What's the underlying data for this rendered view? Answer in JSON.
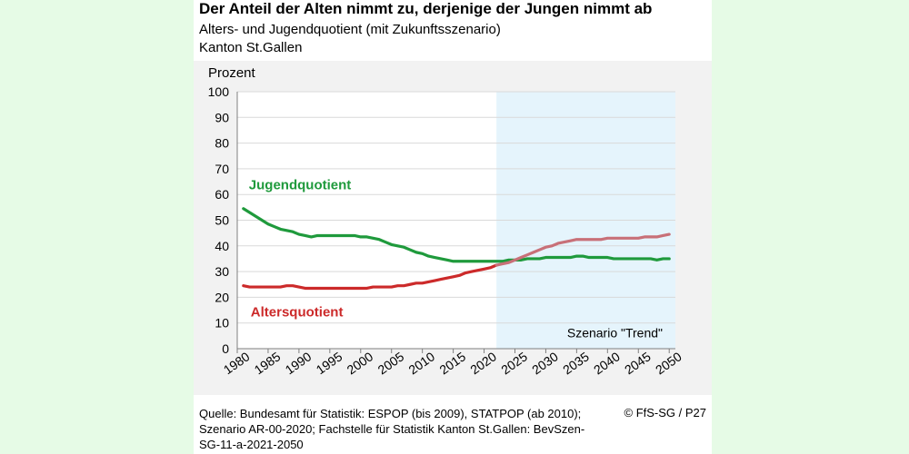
{
  "header": {
    "title": "Der Anteil der Alten nimmt zu, derjenige der Jungen nimmt ab",
    "subtitle": "Alters- und Jugendquotient (mit Zukunftsszenario)",
    "region": "Kanton St.Gallen"
  },
  "footer": {
    "source": "Quelle: Bundesamt für Statistik: ESPOP (bis 2009), STATPOP (ab 2010); Szenario AR-00-2020; Fachstelle für Statistik Kanton St.Gallen: BevSzen-SG-11-a-2021-2050",
    "copyright": "© FfS-SG / P27"
  },
  "chart_data": {
    "type": "line",
    "ylabel": "Prozent",
    "xlabel": "",
    "xlim": [
      1980,
      2051
    ],
    "ylim": [
      0,
      100
    ],
    "x_ticks": [
      1980,
      1985,
      1990,
      1995,
      2000,
      2005,
      2010,
      2015,
      2020,
      2025,
      2030,
      2035,
      2040,
      2045,
      2050
    ],
    "y_ticks": [
      0,
      10,
      20,
      30,
      40,
      50,
      60,
      70,
      80,
      90,
      100
    ],
    "grid": true,
    "scenario": {
      "label": "Szenario \"Trend\"",
      "from": 2022,
      "to": 2051,
      "color": "#e5f4fc"
    },
    "series": [
      {
        "name": "Jugendquotient",
        "color": "#1f9a3c",
        "x": [
          1981,
          1982,
          1983,
          1984,
          1985,
          1986,
          1987,
          1988,
          1989,
          1990,
          1991,
          1992,
          1993,
          1994,
          1995,
          1996,
          1997,
          1998,
          1999,
          2000,
          2001,
          2002,
          2003,
          2004,
          2005,
          2006,
          2007,
          2008,
          2009,
          2010,
          2011,
          2012,
          2013,
          2014,
          2015,
          2016,
          2017,
          2018,
          2019,
          2020,
          2021,
          2022,
          2023,
          2024,
          2025,
          2026,
          2027,
          2028,
          2029,
          2030,
          2031,
          2032,
          2033,
          2034,
          2035,
          2036,
          2037,
          2038,
          2039,
          2040,
          2041,
          2042,
          2043,
          2044,
          2045,
          2046,
          2047,
          2048,
          2049,
          2050
        ],
        "values": [
          54.5,
          53,
          51.5,
          50,
          48.5,
          47.5,
          46.5,
          46,
          45.5,
          44.5,
          44,
          43.5,
          44,
          44,
          44,
          44,
          44,
          44,
          44,
          43.5,
          43.5,
          43,
          42.5,
          41.5,
          40.5,
          40,
          39.5,
          38.5,
          37.5,
          37,
          36,
          35.5,
          35,
          34.5,
          34,
          34,
          34,
          34,
          34,
          34,
          34,
          34,
          34,
          34.5,
          34.5,
          34.5,
          35,
          35,
          35,
          35.5,
          35.5,
          35.5,
          35.5,
          35.5,
          36,
          36,
          35.5,
          35.5,
          35.5,
          35.5,
          35,
          35,
          35,
          35,
          35,
          35,
          35,
          34.5,
          35,
          35
        ]
      },
      {
        "name": "Altersquotient",
        "color": "#cc2a2a",
        "color_scenario": "#c87078",
        "x": [
          1981,
          1982,
          1983,
          1984,
          1985,
          1986,
          1987,
          1988,
          1989,
          1990,
          1991,
          1992,
          1993,
          1994,
          1995,
          1996,
          1997,
          1998,
          1999,
          2000,
          2001,
          2002,
          2003,
          2004,
          2005,
          2006,
          2007,
          2008,
          2009,
          2010,
          2011,
          2012,
          2013,
          2014,
          2015,
          2016,
          2017,
          2018,
          2019,
          2020,
          2021,
          2022,
          2023,
          2024,
          2025,
          2026,
          2027,
          2028,
          2029,
          2030,
          2031,
          2032,
          2033,
          2034,
          2035,
          2036,
          2037,
          2038,
          2039,
          2040,
          2041,
          2042,
          2043,
          2044,
          2045,
          2046,
          2047,
          2048,
          2049,
          2050
        ],
        "values": [
          24.5,
          24,
          24,
          24,
          24,
          24,
          24,
          24.5,
          24.5,
          24,
          23.5,
          23.5,
          23.5,
          23.5,
          23.5,
          23.5,
          23.5,
          23.5,
          23.5,
          23.5,
          23.5,
          24,
          24,
          24,
          24,
          24.5,
          24.5,
          25,
          25.5,
          25.5,
          26,
          26.5,
          27,
          27.5,
          28,
          28.5,
          29.5,
          30,
          30.5,
          31,
          31.5,
          32.5,
          33,
          33.5,
          34.5,
          35.5,
          36.5,
          37.5,
          38.5,
          39.5,
          40,
          41,
          41.5,
          42,
          42.5,
          42.5,
          42.5,
          42.5,
          42.5,
          43,
          43,
          43,
          43,
          43,
          43,
          43.5,
          43.5,
          43.5,
          44,
          44.5
        ]
      }
    ]
  }
}
